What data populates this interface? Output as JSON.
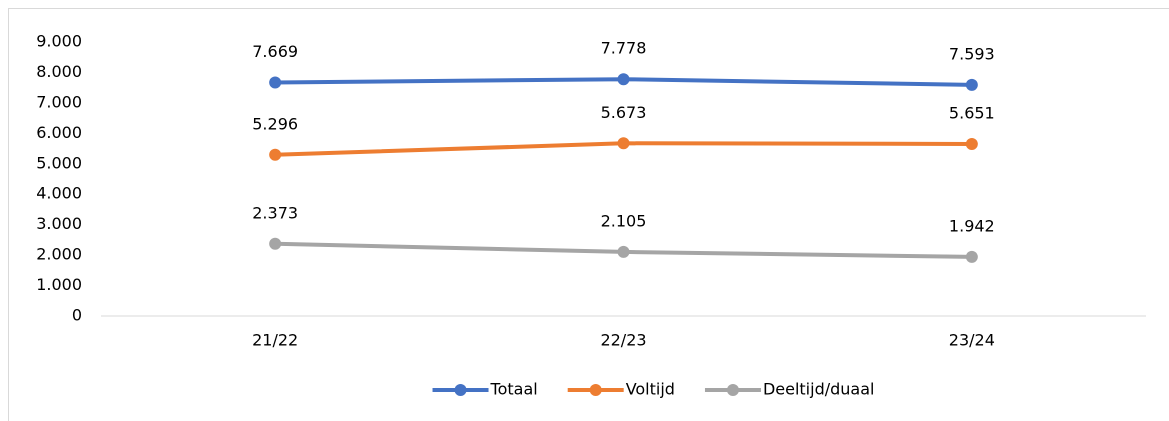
{
  "chart_data": {
    "type": "line",
    "categories": [
      "21/22",
      "22/23",
      "23/24"
    ],
    "series": [
      {
        "name": "Totaal",
        "color": "#4472c4",
        "values": [
          7669,
          7778,
          7593
        ],
        "value_labels": [
          "7.669",
          "7.778",
          "7.593"
        ]
      },
      {
        "name": "Voltijd",
        "color": "#ed7d31",
        "values": [
          5296,
          5673,
          5651
        ],
        "value_labels": [
          "5.296",
          "5.673",
          "5.651"
        ]
      },
      {
        "name": "Deeltijd/duaal",
        "color": "#a5a5a5",
        "values": [
          2373,
          2105,
          1942
        ],
        "value_labels": [
          "2.373",
          "2.105",
          "1.942"
        ]
      }
    ],
    "ylim": [
      0,
      9000
    ],
    "yticks": [
      0,
      {
        "value": 1000,
        "label": "1.000"
      },
      {
        "value": 2000,
        "label": "2.000"
      },
      {
        "value": 3000,
        "label": "3.000"
      },
      {
        "value": 4000,
        "label": "4.000"
      },
      {
        "value": 5000,
        "label": "5.000"
      },
      {
        "value": 6000,
        "label": "6.000"
      },
      {
        "value": 7000,
        "label": "7.000"
      },
      {
        "value": 8000,
        "label": "8.000"
      },
      {
        "value": 9000,
        "label": "9.000"
      }
    ],
    "grid": false,
    "legend": "bottom"
  }
}
